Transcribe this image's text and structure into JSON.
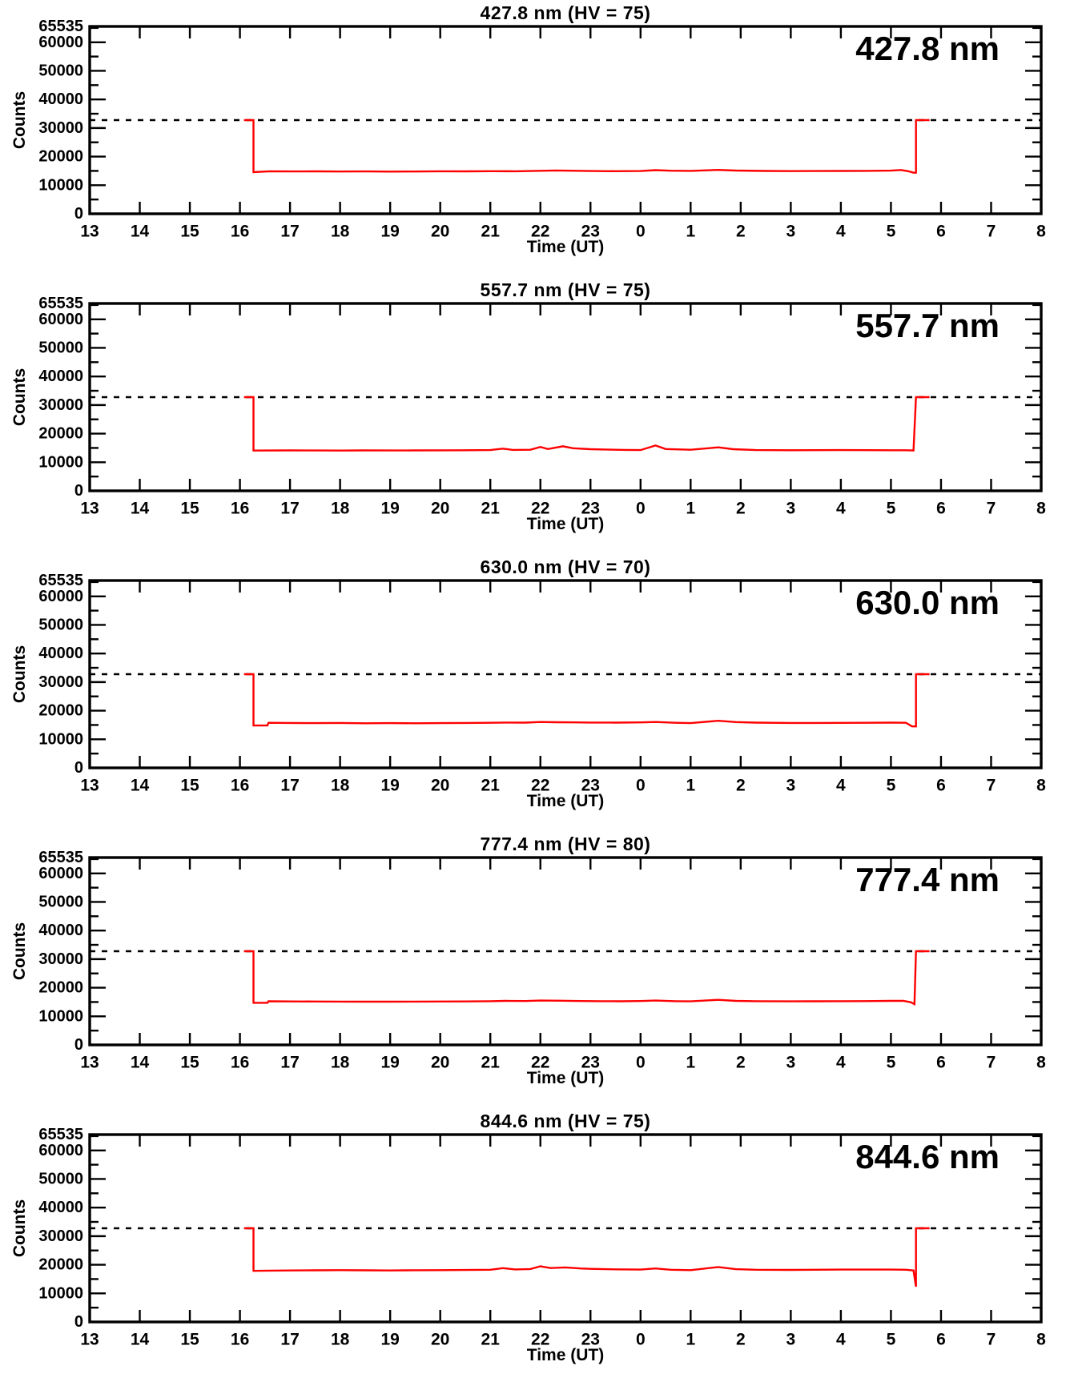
{
  "axes": {
    "xlabel": "Time (UT)",
    "ylabel": "Counts",
    "xlim": [
      13,
      32
    ],
    "ylim": [
      0,
      65535
    ],
    "x_tick_values": [
      13,
      14,
      15,
      16,
      17,
      18,
      19,
      20,
      21,
      22,
      23,
      24,
      25,
      26,
      27,
      28,
      29,
      30,
      31,
      32
    ],
    "x_tick_labels": [
      "13",
      "14",
      "15",
      "16",
      "17",
      "18",
      "19",
      "20",
      "21",
      "22",
      "23",
      "0",
      "1",
      "2",
      "3",
      "4",
      "5",
      "6",
      "7",
      "8"
    ],
    "y_tick_values": [
      0,
      10000,
      20000,
      30000,
      40000,
      50000,
      60000,
      65535
    ],
    "y_tick_labels": [
      "0",
      "10000",
      "20000",
      "30000",
      "40000",
      "50000",
      "60000",
      "65535"
    ],
    "y_minor_step": 5000,
    "grid": false,
    "reference_line_y": 32768,
    "reference_line_style": "dashed",
    "axis_color": "#000000"
  },
  "chart_data": [
    {
      "type": "line",
      "title": "427.8 nm (HV = 75)",
      "inplot_label": "427.8 nm",
      "wavelength": "427.8 nm",
      "hv": "75",
      "line_color": "#ff0000",
      "series": [
        {
          "name": "counts",
          "points": [
            [
              16.08,
              32768
            ],
            [
              16.27,
              32768
            ],
            [
              16.27,
              14550
            ],
            [
              16.6,
              14880
            ],
            [
              17,
              14820
            ],
            [
              17.5,
              14840
            ],
            [
              18,
              14790
            ],
            [
              18.5,
              14810
            ],
            [
              19,
              14760
            ],
            [
              19.5,
              14800
            ],
            [
              20,
              14870
            ],
            [
              20.5,
              14830
            ],
            [
              21,
              14900
            ],
            [
              21.5,
              14880
            ],
            [
              21.9,
              15000
            ],
            [
              22.3,
              15160
            ],
            [
              22.6,
              15060
            ],
            [
              23,
              14960
            ],
            [
              23.5,
              14900
            ],
            [
              24,
              14950
            ],
            [
              24.3,
              15260
            ],
            [
              24.6,
              15060
            ],
            [
              25,
              15010
            ],
            [
              25.55,
              15360
            ],
            [
              25.9,
              15110
            ],
            [
              26.5,
              14990
            ],
            [
              27,
              14930
            ],
            [
              27.5,
              14950
            ],
            [
              28,
              14980
            ],
            [
              28.5,
              15020
            ],
            [
              29,
              15090
            ],
            [
              29.2,
              15310
            ],
            [
              29.35,
              14860
            ],
            [
              29.45,
              14360
            ],
            [
              29.5,
              14360
            ],
            [
              29.5,
              32768
            ],
            [
              29.77,
              32768
            ]
          ]
        }
      ]
    },
    {
      "type": "line",
      "title": "557.7 nm (HV = 75)",
      "inplot_label": "557.7 nm",
      "wavelength": "557.7 nm",
      "hv": "75",
      "line_color": "#ff0000",
      "series": [
        {
          "name": "counts",
          "points": [
            [
              16.08,
              32768
            ],
            [
              16.27,
              32768
            ],
            [
              16.27,
              14080
            ],
            [
              17,
              14150
            ],
            [
              17.5,
              14120
            ],
            [
              18,
              14100
            ],
            [
              18.5,
              14130
            ],
            [
              19,
              14110
            ],
            [
              19.5,
              14140
            ],
            [
              20,
              14160
            ],
            [
              20.5,
              14190
            ],
            [
              21,
              14260
            ],
            [
              21.25,
              14760
            ],
            [
              21.45,
              14310
            ],
            [
              21.8,
              14360
            ],
            [
              22,
              15360
            ],
            [
              22.15,
              14610
            ],
            [
              22.45,
              15560
            ],
            [
              22.65,
              14910
            ],
            [
              23,
              14560
            ],
            [
              23.3,
              14460
            ],
            [
              23.7,
              14310
            ],
            [
              24,
              14260
            ],
            [
              24.3,
              15860
            ],
            [
              24.5,
              14610
            ],
            [
              25,
              14360
            ],
            [
              25.55,
              15210
            ],
            [
              25.85,
              14560
            ],
            [
              26.3,
              14260
            ],
            [
              27,
              14210
            ],
            [
              27.5,
              14240
            ],
            [
              28,
              14260
            ],
            [
              28.5,
              14240
            ],
            [
              29,
              14210
            ],
            [
              29.3,
              14190
            ],
            [
              29.45,
              14110
            ],
            [
              29.5,
              32768
            ],
            [
              29.77,
              32768
            ]
          ]
        }
      ]
    },
    {
      "type": "line",
      "title": "630.0 nm (HV = 70)",
      "inplot_label": "630.0 nm",
      "wavelength": "630.0 nm",
      "hv": "70",
      "line_color": "#ff0000",
      "series": [
        {
          "name": "counts",
          "points": [
            [
              16.08,
              32768
            ],
            [
              16.27,
              32768
            ],
            [
              16.27,
              14820
            ],
            [
              16.55,
              14820
            ],
            [
              16.57,
              15760
            ],
            [
              17,
              15710
            ],
            [
              17.5,
              15660
            ],
            [
              18,
              15700
            ],
            [
              18.5,
              15610
            ],
            [
              19,
              15660
            ],
            [
              19.5,
              15610
            ],
            [
              20,
              15660
            ],
            [
              20.5,
              15710
            ],
            [
              21,
              15760
            ],
            [
              21.3,
              15860
            ],
            [
              21.7,
              15810
            ],
            [
              22,
              16060
            ],
            [
              22.3,
              15960
            ],
            [
              22.7,
              15910
            ],
            [
              23,
              15860
            ],
            [
              23.5,
              15810
            ],
            [
              24,
              15910
            ],
            [
              24.3,
              16060
            ],
            [
              24.7,
              15760
            ],
            [
              25,
              15660
            ],
            [
              25.55,
              16460
            ],
            [
              25.9,
              16010
            ],
            [
              26.3,
              15810
            ],
            [
              27,
              15710
            ],
            [
              27.5,
              15710
            ],
            [
              28,
              15730
            ],
            [
              28.5,
              15760
            ],
            [
              29,
              15810
            ],
            [
              29.3,
              15760
            ],
            [
              29.42,
              14510
            ],
            [
              29.5,
              14510
            ],
            [
              29.5,
              32768
            ],
            [
              29.77,
              32768
            ]
          ]
        }
      ]
    },
    {
      "type": "line",
      "title": "777.4 nm (HV = 80)",
      "inplot_label": "777.4 nm",
      "wavelength": "777.4 nm",
      "hv": "80",
      "line_color": "#ff0000",
      "series": [
        {
          "name": "counts",
          "points": [
            [
              16.08,
              32768
            ],
            [
              16.27,
              32768
            ],
            [
              16.27,
              14720
            ],
            [
              16.55,
              14720
            ],
            [
              16.57,
              15260
            ],
            [
              17,
              15210
            ],
            [
              17.5,
              15190
            ],
            [
              18,
              15160
            ],
            [
              18.5,
              15130
            ],
            [
              19,
              15110
            ],
            [
              19.5,
              15140
            ],
            [
              20,
              15180
            ],
            [
              20.5,
              15210
            ],
            [
              21,
              15290
            ],
            [
              21.3,
              15410
            ],
            [
              21.7,
              15360
            ],
            [
              22,
              15510
            ],
            [
              22.4,
              15460
            ],
            [
              22.8,
              15360
            ],
            [
              23.2,
              15290
            ],
            [
              23.6,
              15260
            ],
            [
              24,
              15340
            ],
            [
              24.3,
              15510
            ],
            [
              24.7,
              15290
            ],
            [
              25,
              15230
            ],
            [
              25.55,
              15760
            ],
            [
              25.9,
              15410
            ],
            [
              26.3,
              15290
            ],
            [
              27,
              15230
            ],
            [
              27.5,
              15260
            ],
            [
              28,
              15290
            ],
            [
              28.5,
              15330
            ],
            [
              29,
              15390
            ],
            [
              29.25,
              15430
            ],
            [
              29.4,
              14910
            ],
            [
              29.47,
              14260
            ],
            [
              29.5,
              32768
            ],
            [
              29.77,
              32768
            ]
          ]
        }
      ]
    },
    {
      "type": "line",
      "title": "844.6 nm (HV = 75)",
      "inplot_label": "844.6 nm",
      "wavelength": "844.6 nm",
      "hv": "75",
      "line_color": "#ff0000",
      "series": [
        {
          "name": "counts",
          "points": [
            [
              16.08,
              32768
            ],
            [
              16.27,
              32768
            ],
            [
              16.27,
              17860
            ],
            [
              16.6,
              17960
            ],
            [
              17,
              18010
            ],
            [
              17.5,
              18060
            ],
            [
              18,
              18130
            ],
            [
              18.5,
              18060
            ],
            [
              19,
              18010
            ],
            [
              19.5,
              18090
            ],
            [
              20,
              18130
            ],
            [
              20.5,
              18190
            ],
            [
              21,
              18260
            ],
            [
              21.25,
              18810
            ],
            [
              21.5,
              18360
            ],
            [
              21.8,
              18510
            ],
            [
              22,
              19460
            ],
            [
              22.2,
              18860
            ],
            [
              22.5,
              19060
            ],
            [
              22.8,
              18710
            ],
            [
              23,
              18560
            ],
            [
              23.5,
              18410
            ],
            [
              24,
              18310
            ],
            [
              24.3,
              18710
            ],
            [
              24.6,
              18260
            ],
            [
              25,
              18110
            ],
            [
              25.55,
              19210
            ],
            [
              25.9,
              18460
            ],
            [
              26.3,
              18260
            ],
            [
              27,
              18210
            ],
            [
              27.5,
              18260
            ],
            [
              28,
              18310
            ],
            [
              28.5,
              18330
            ],
            [
              29,
              18330
            ],
            [
              29.3,
              18260
            ],
            [
              29.45,
              18010
            ],
            [
              29.5,
              12310
            ],
            [
              29.5,
              32768
            ],
            [
              29.77,
              32768
            ]
          ]
        }
      ]
    }
  ]
}
